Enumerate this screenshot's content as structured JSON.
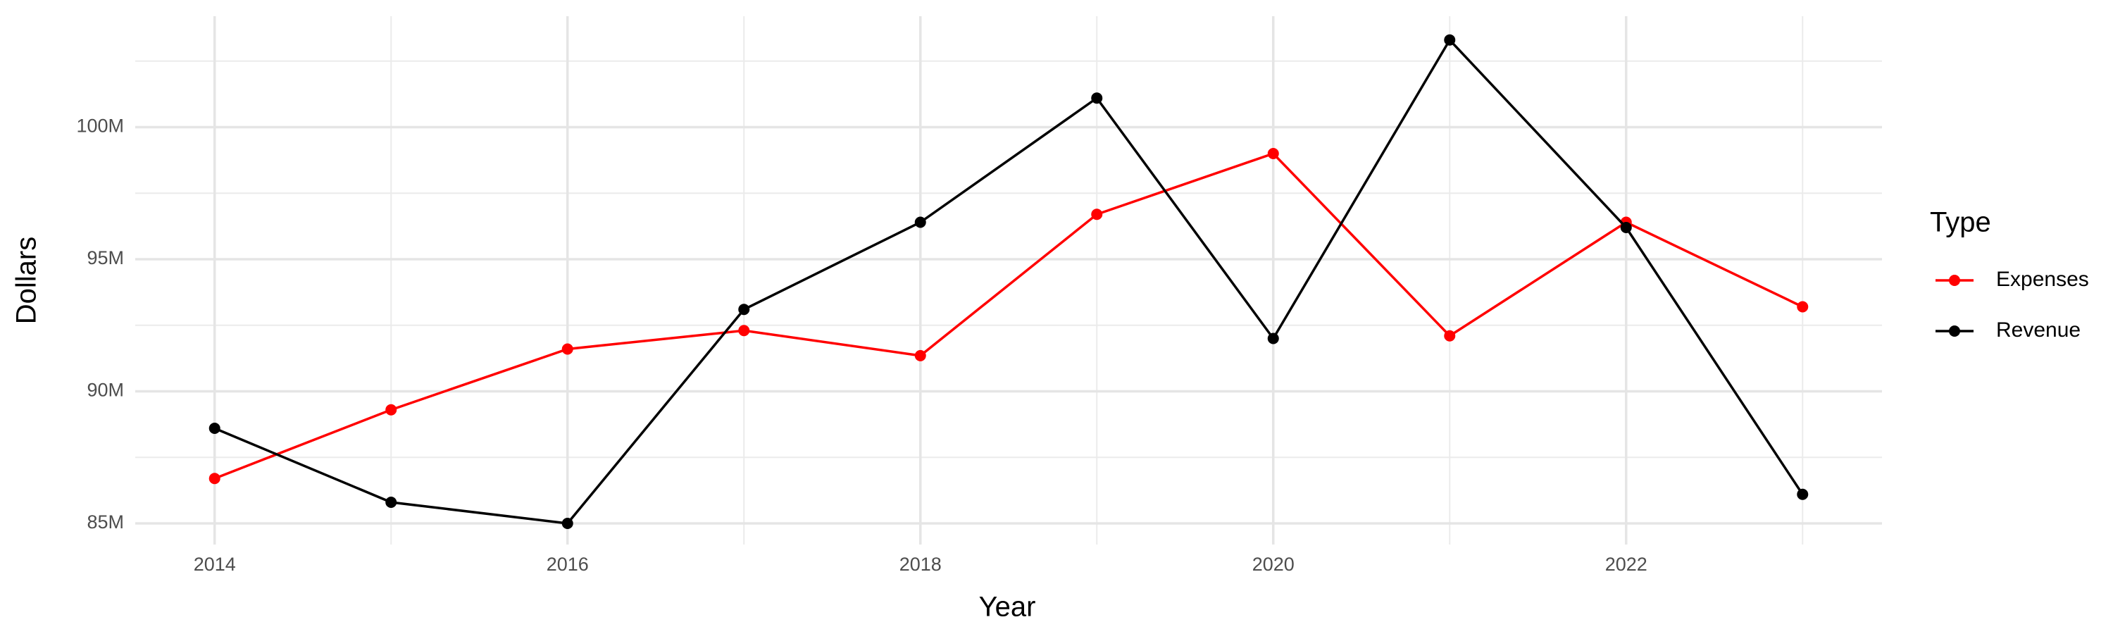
{
  "chart_data": {
    "type": "line",
    "x_label": "Year",
    "y_label": "Dollars",
    "x": [
      2014,
      2015,
      2016,
      2017,
      2018,
      2019,
      2020,
      2021,
      2022,
      2023
    ],
    "series": [
      {
        "name": "Expenses",
        "color": "#ff0000",
        "values": [
          86700000,
          89300000,
          91600000,
          92300000,
          91350000,
          96700000,
          99000000,
          92100000,
          96400000,
          93200000
        ]
      },
      {
        "name": "Revenue",
        "color": "#000000",
        "values": [
          88600000,
          85800000,
          85000000,
          93100000,
          96400000,
          101100000,
          92000000,
          103300000,
          96200000,
          86100000
        ]
      }
    ],
    "xlim": [
      2013.55,
      2023.45
    ],
    "xticks": [
      2014,
      2016,
      2018,
      2020,
      2022
    ],
    "ylim": [
      84200000,
      104200000
    ],
    "yticks": [
      {
        "value": 85000000,
        "label": "85M"
      },
      {
        "value": 90000000,
        "label": "90M"
      },
      {
        "value": 95000000,
        "label": "95M"
      },
      {
        "value": 100000000,
        "label": "100M"
      }
    ],
    "grid": true,
    "legend_title": "Type",
    "legend_position": "right"
  }
}
